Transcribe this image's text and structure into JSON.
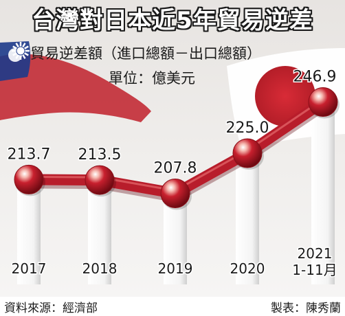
{
  "title": "台灣對日本近5年貿易逆差",
  "subtitle": "貿易逆差額（進口總額－出口總額）",
  "unit_label": "單位：億美元",
  "footer": {
    "source": "資料來源：經濟部",
    "producer": "製表：陳秀蘭"
  },
  "colors": {
    "line": "#b81d2b",
    "marker": "#c8202e",
    "text": "#1a1a1a"
  },
  "chart_data": {
    "type": "line",
    "title": "台灣對日本近5年貿易逆差",
    "subtitle": "貿易逆差額（進口總額－出口總額）",
    "unit": "單位：億美元",
    "categories": [
      "2017",
      "2018",
      "2019",
      "2020",
      "2021\n1-11月"
    ],
    "values": [
      213.7,
      213.5,
      207.8,
      225.0,
      246.9
    ],
    "value_labels": [
      "213.7",
      "213.5",
      "207.8",
      "225.0",
      "246.9"
    ],
    "grid": false,
    "legend": "none"
  }
}
